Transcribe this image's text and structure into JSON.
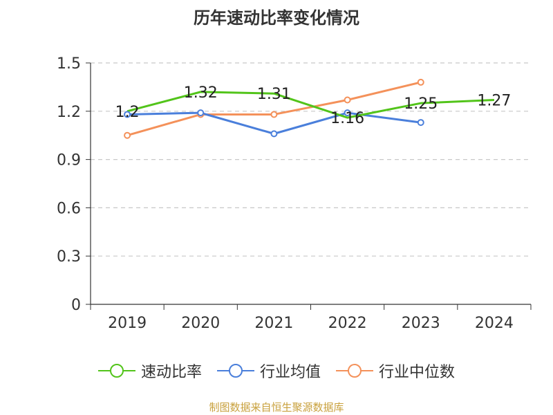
{
  "chart_data": {
    "type": "line",
    "title": "历年速动比率变化情况",
    "categories": [
      "2019",
      "2020",
      "2021",
      "2022",
      "2023",
      "2024"
    ],
    "y_ticks": [
      "0",
      "0.3",
      "0.6",
      "0.9",
      "1.2",
      "1.5"
    ],
    "ylim": [
      0,
      1.5
    ],
    "grid": true,
    "legend": "bottom",
    "series": [
      {
        "name": "速动比率",
        "color": "#52c41a",
        "values": [
          1.2,
          1.32,
          1.31,
          1.16,
          1.25,
          1.27
        ],
        "labels": [
          "1.2",
          "1.32",
          "1.31",
          "1.16",
          "1.25",
          "1.27"
        ]
      },
      {
        "name": "行业均值",
        "color": "#4a7fdb",
        "values": [
          1.18,
          1.19,
          1.06,
          1.19,
          1.13,
          null
        ]
      },
      {
        "name": "行业中位数",
        "color": "#f4915a",
        "values": [
          1.05,
          1.18,
          1.18,
          1.27,
          1.38,
          null
        ]
      }
    ]
  },
  "source": "制图数据来自恒生聚源数据库"
}
